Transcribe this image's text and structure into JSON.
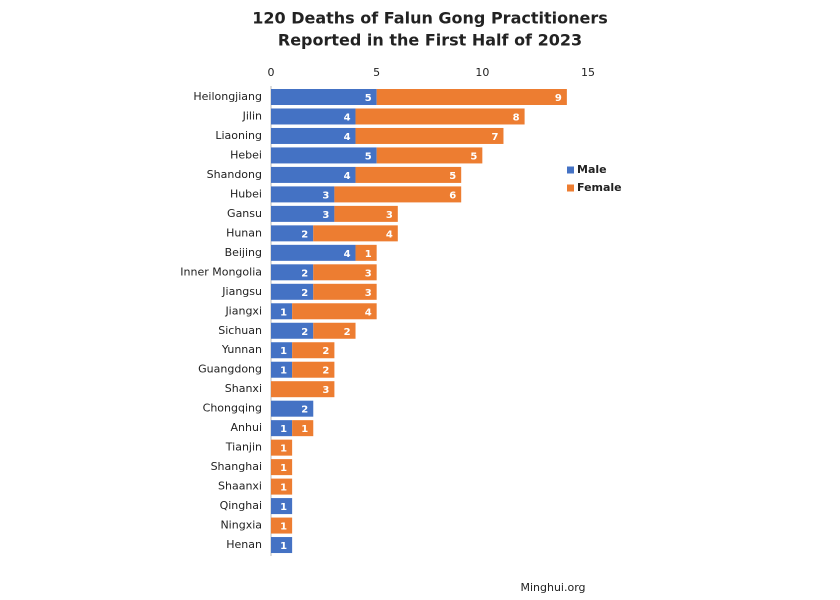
{
  "chart_data": {
    "type": "stacked_barh",
    "title": "120 Deaths of Falun Gong Practitioners",
    "subtitle": "Reported in the First Half of 2023",
    "source": "Minghui.org",
    "categories": [
      "Heilongjiang",
      "Jilin",
      "Liaoning",
      "Hebei",
      "Shandong",
      "Hubei",
      "Gansu",
      "Hunan",
      "Beijing",
      "Inner Mongolia",
      "Jiangsu",
      "Jiangxi",
      "Sichuan",
      "Yunnan",
      "Guangdong",
      "Shanxi",
      "Chongqing",
      "Anhui",
      "Tianjin",
      "Shanghai",
      "Shaanxi",
      "Qinghai",
      "Ningxia",
      "Henan"
    ],
    "series": [
      {
        "name": "Male",
        "color": "#4472c4",
        "values": [
          5,
          4,
          4,
          5,
          4,
          3,
          3,
          2,
          4,
          2,
          2,
          1,
          2,
          1,
          1,
          null,
          2,
          1,
          null,
          null,
          null,
          1,
          null,
          1
        ]
      },
      {
        "name": "Female",
        "color": "#ed7d31",
        "values": [
          9,
          8,
          7,
          5,
          5,
          6,
          3,
          4,
          1,
          3,
          3,
          4,
          2,
          2,
          2,
          3,
          null,
          1,
          1,
          1,
          1,
          null,
          1,
          null
        ]
      }
    ],
    "xlim": [
      0,
      15
    ],
    "xticks": [
      0,
      5,
      10,
      15
    ],
    "grid": false,
    "legend": "right"
  }
}
